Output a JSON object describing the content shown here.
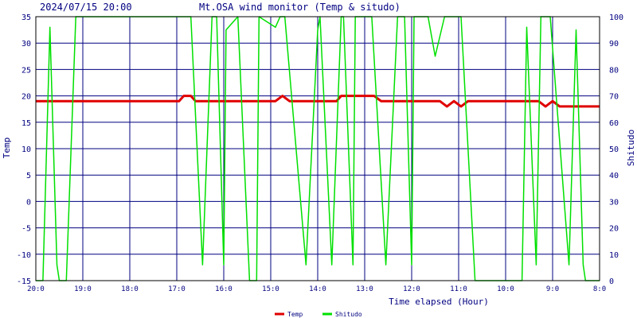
{
  "header": {
    "timestamp": "2024/07/15 20:00",
    "title": "Mt.OSA wind monitor (Temp & situdo)"
  },
  "chart_data": {
    "type": "line",
    "title": "Mt.OSA wind monitor (Temp & situdo)",
    "xlabel": "Time elapsed (Hour)",
    "ylabel_left": "Temp",
    "ylabel_right": "Shitudo",
    "ylim_left": [
      -15,
      35
    ],
    "ylim_right": [
      0,
      100
    ],
    "yticks_left": [
      -15,
      -10,
      -5,
      0,
      5,
      10,
      15,
      20,
      25,
      30,
      35
    ],
    "yticks_right": [
      0,
      10,
      20,
      30,
      40,
      50,
      60,
      70,
      80,
      90,
      100
    ],
    "x_range": [
      0,
      12
    ],
    "x_ticks": [
      {
        "x": 0,
        "label": "20:0"
      },
      {
        "x": 1,
        "label": "19:0"
      },
      {
        "x": 2,
        "label": "18:0"
      },
      {
        "x": 3,
        "label": "17:0"
      },
      {
        "x": 4,
        "label": "16:0"
      },
      {
        "x": 5,
        "label": "15:0"
      },
      {
        "x": 6,
        "label": "14:0"
      },
      {
        "x": 7,
        "label": "13:0"
      },
      {
        "x": 8,
        "label": "12:0"
      },
      {
        "x": 9,
        "label": "11:0"
      },
      {
        "x": 10,
        "label": "10:0"
      },
      {
        "x": 11,
        "label": "9:0"
      },
      {
        "x": 12,
        "label": "8:0"
      }
    ],
    "grid": true,
    "legend_position": "bottom-center",
    "colors": {
      "background": "#ffffff",
      "frame": "#000000",
      "grid": "#000080",
      "text": "#000080",
      "temp": "#e00000",
      "humidity": "#00e000"
    },
    "series": [
      {
        "name": "Temp",
        "axis": "left",
        "color": "#e00000",
        "x": [
          0,
          3.05,
          3.15,
          3.3,
          3.4,
          5.1,
          5.25,
          5.4,
          6.4,
          6.5,
          7.0,
          7.2,
          7.35,
          8.6,
          8.75,
          8.9,
          9.05,
          9.2,
          10.7,
          10.85,
          11.0,
          11.15,
          12.0
        ],
        "values": [
          19,
          19,
          20,
          20,
          19,
          19,
          20,
          19,
          19,
          20,
          20,
          20,
          19,
          19,
          18,
          19,
          18,
          19,
          19,
          18,
          19,
          18,
          18
        ]
      },
      {
        "name": "Shitudo",
        "axis": "right",
        "color": "#00e000",
        "x": [
          0,
          0.15,
          0.3,
          0.45,
          0.5,
          0.65,
          0.85,
          3.3,
          3.55,
          3.75,
          3.85,
          4.0,
          4.05,
          4.3,
          4.55,
          4.7,
          4.75,
          5.1,
          5.2,
          5.3,
          5.75,
          6.0,
          6.05,
          6.3,
          6.5,
          6.55,
          6.75,
          6.8,
          7.15,
          7.45,
          7.7,
          7.85,
          8.0,
          8.05,
          8.35,
          8.5,
          8.7,
          9.05,
          9.35,
          9.55,
          9.8,
          10.35,
          10.45,
          10.65,
          10.75,
          10.95,
          11.35,
          11.5,
          11.65,
          11.7,
          12.0
        ],
        "values": [
          0,
          0,
          96,
          6,
          0,
          0,
          100,
          100,
          6,
          100,
          100,
          6,
          95,
          100,
          0,
          0,
          100,
          96,
          100,
          100,
          6,
          95,
          100,
          6,
          100,
          100,
          6,
          100,
          100,
          6,
          100,
          100,
          6,
          100,
          100,
          85,
          100,
          100,
          0,
          0,
          0,
          0,
          96,
          6,
          100,
          100,
          6,
          95,
          6,
          0,
          0
        ]
      }
    ]
  }
}
